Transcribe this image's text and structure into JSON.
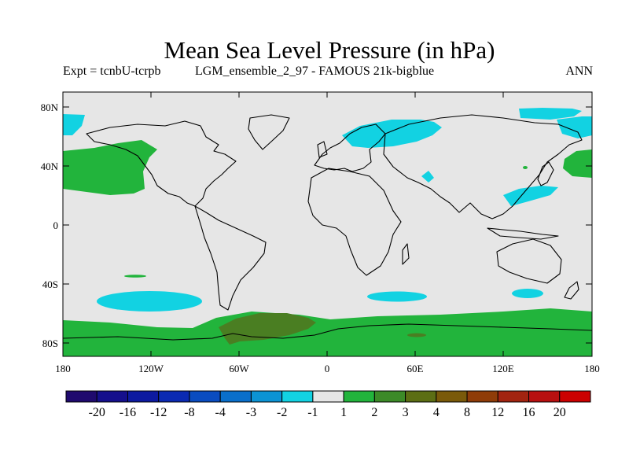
{
  "title": "Mean Sea Level Pressure (in hPa)",
  "subtitle_left": "Expt = tcnbU-tcrpb",
  "subtitle_center": "LGM_ensemble_2_97 - FAMOUS 21k-bigblue",
  "subtitle_right": "ANN",
  "axes": {
    "lat_ticks": [
      "80N",
      "40N",
      "0",
      "40S",
      "80S"
    ],
    "lon_ticks": [
      "180",
      "120W",
      "60W",
      "0",
      "60E",
      "120E",
      "180"
    ]
  },
  "colorbar": {
    "colors": [
      "#1f0a6e",
      "#150f8c",
      "#0d1aa0",
      "#0b2ab2",
      "#0a4cc0",
      "#0a6fcb",
      "#0c93d4",
      "#12d2e2",
      "#e6e6e6",
      "#22b43c",
      "#3c8a28",
      "#5c6e14",
      "#7a5a0a",
      "#8f3c08",
      "#a22410",
      "#b81010",
      "#cc0000"
    ],
    "labels": [
      "-20",
      "-16",
      "-12",
      "-8",
      "-4",
      "-3",
      "-2",
      "-1",
      "1",
      "2",
      "3",
      "4",
      "8",
      "12",
      "16",
      "20"
    ]
  },
  "fill_colors": {
    "background": "#e6e6e6",
    "neg_1_2": "#12d2e2",
    "pos_1_2": "#22b43c",
    "pos_2_3": "#4a7e22"
  }
}
